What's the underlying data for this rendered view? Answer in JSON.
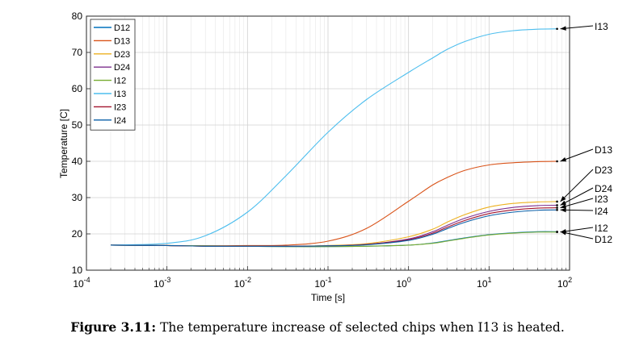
{
  "caption": {
    "label": "Figure 3.11:",
    "text": "The temperature increase of selected chips when I13 is heated."
  },
  "chart_data": {
    "type": "line",
    "xlabel": "Time [s]",
    "ylabel": "Temperature [C]",
    "xscale": "log",
    "xlim": [
      0.0001,
      100
    ],
    "ylim": [
      10,
      80
    ],
    "x_ticks": [
      0.0001,
      0.001,
      0.01,
      0.1,
      1,
      10,
      100
    ],
    "x_tick_labels": [
      {
        "base": "10",
        "exp": "-4"
      },
      {
        "base": "10",
        "exp": "-3"
      },
      {
        "base": "10",
        "exp": "-2"
      },
      {
        "base": "10",
        "exp": "-1"
      },
      {
        "base": "10",
        "exp": "0"
      },
      {
        "base": "10",
        "exp": "1"
      },
      {
        "base": "10",
        "exp": "2"
      }
    ],
    "y_ticks": [
      10,
      20,
      30,
      40,
      50,
      60,
      70,
      80
    ],
    "grid": true,
    "legend_position": "top-left",
    "x": [
      0.0002,
      0.001,
      0.003,
      0.01,
      0.03,
      0.1,
      0.3,
      1,
      2,
      3,
      5,
      10,
      20,
      40,
      70
    ],
    "series": [
      {
        "name": "D12",
        "color": "#0072bd",
        "values": [
          16.9,
          16.8,
          16.7,
          16.6,
          16.5,
          16.5,
          16.6,
          16.9,
          17.5,
          18.1,
          18.9,
          19.8,
          20.3,
          20.6,
          20.6
        ]
      },
      {
        "name": "D13",
        "color": "#d95319",
        "values": [
          16.9,
          16.8,
          16.7,
          16.8,
          16.9,
          18.0,
          21.5,
          29.0,
          33.5,
          35.5,
          37.5,
          39.0,
          39.6,
          39.9,
          40.0
        ]
      },
      {
        "name": "D23",
        "color": "#edb120",
        "values": [
          16.9,
          16.8,
          16.6,
          16.6,
          16.6,
          16.8,
          17.3,
          19.2,
          21.3,
          23.2,
          25.3,
          27.4,
          28.4,
          28.8,
          28.9
        ]
      },
      {
        "name": "D24",
        "color": "#7e2f8e",
        "values": [
          16.9,
          16.8,
          16.6,
          16.6,
          16.6,
          16.7,
          17.1,
          18.6,
          20.6,
          22.3,
          24.3,
          26.2,
          27.3,
          27.8,
          27.9
        ]
      },
      {
        "name": "I12",
        "color": "#77ac30",
        "values": [
          16.9,
          16.8,
          16.7,
          16.6,
          16.5,
          16.5,
          16.6,
          16.9,
          17.4,
          18.0,
          18.8,
          19.7,
          20.2,
          20.5,
          20.5
        ]
      },
      {
        "name": "I13",
        "color": "#4dbeee",
        "values": [
          16.9,
          17.4,
          19.5,
          26.0,
          36.0,
          48.0,
          57.0,
          64.5,
          68.5,
          70.8,
          73.0,
          75.0,
          76.0,
          76.4,
          76.5
        ]
      },
      {
        "name": "I23",
        "color": "#a2142f",
        "values": [
          16.9,
          16.8,
          16.6,
          16.6,
          16.6,
          16.7,
          17.1,
          18.4,
          20.2,
          21.8,
          23.7,
          25.6,
          26.6,
          27.1,
          27.2
        ]
      },
      {
        "name": "I24",
        "color": "#0a5fa8",
        "values": [
          16.9,
          16.8,
          16.6,
          16.6,
          16.6,
          16.7,
          17.0,
          18.2,
          19.9,
          21.4,
          23.2,
          25.0,
          26.0,
          26.5,
          26.6
        ]
      }
    ],
    "annotations": [
      {
        "text": "I13",
        "value": 76.5
      },
      {
        "text": "D13",
        "value": 40.0
      },
      {
        "text": "D23",
        "value": 28.9
      },
      {
        "text": "D24",
        "value": 27.9
      },
      {
        "text": "I23",
        "value": 27.2
      },
      {
        "text": "I24",
        "value": 26.6
      },
      {
        "text": "I12",
        "value": 20.5
      },
      {
        "text": "D12",
        "value": 20.6
      }
    ]
  }
}
